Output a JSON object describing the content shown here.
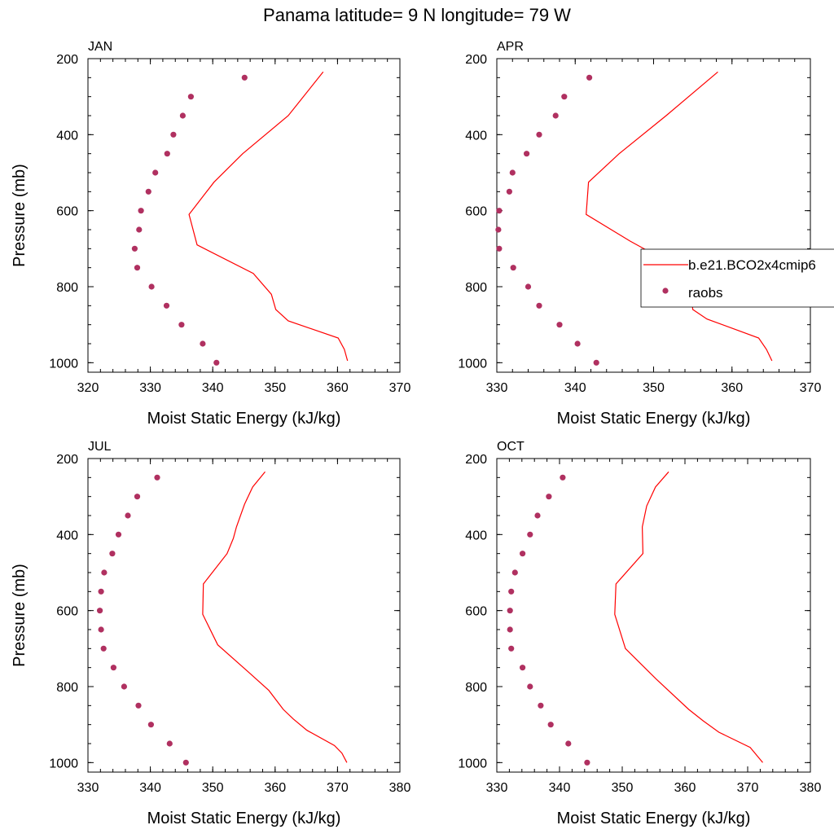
{
  "figure": {
    "title": "Panama  latitude= 9 N longitude= 79 W"
  },
  "colors": {
    "model": "#ff0000",
    "obs": "#b03060",
    "axes": "#000000"
  },
  "legend": {
    "panel": "APR",
    "placement": "right, overlapping APR panel",
    "entries": [
      {
        "label": "b.e21.BCO2x4cmip6",
        "style": "line",
        "color": "#ff0000"
      },
      {
        "label": "raobs",
        "style": "marker",
        "color": "#b03060"
      }
    ]
  },
  "chart_data": [
    {
      "type": "line",
      "panel": "JAN",
      "title": "JAN",
      "xlabel": "Moist Static Energy (kJ/kg)",
      "ylabel": "Pressure (mb)",
      "xlim": [
        320,
        370
      ],
      "ylim": [
        200,
        1025
      ],
      "y_inverted": true,
      "xticks": [
        320,
        330,
        340,
        350,
        360,
        370
      ],
      "yticks": [
        200,
        400,
        600,
        800,
        1000
      ],
      "series": [
        {
          "name": "b.e21.BCO2x4cmip6",
          "style": "line",
          "x": [
            357.7,
            352.1,
            344.8,
            340.2,
            336.2,
            337.5,
            346.5,
            349.4,
            350.1,
            352.1,
            360.1,
            361.1,
            361.6
          ],
          "y": [
            235,
            350,
            450,
            525,
            610,
            690,
            765,
            820,
            860,
            890,
            935,
            965,
            995
          ]
        },
        {
          "name": "raobs",
          "style": "marker",
          "x": [
            345.1,
            336.5,
            335.2,
            333.7,
            332.7,
            330.8,
            329.7,
            328.5,
            328.2,
            327.5,
            327.9,
            330.2,
            332.6,
            335.0,
            338.4,
            340.6
          ],
          "y": [
            250,
            300,
            350,
            400,
            450,
            500,
            550,
            600,
            650,
            700,
            750,
            800,
            850,
            900,
            950,
            1000
          ]
        }
      ]
    },
    {
      "type": "line",
      "panel": "APR",
      "title": "APR",
      "xlabel": "Moist Static Energy (kJ/kg)",
      "ylabel": "",
      "xlim": [
        330,
        370
      ],
      "ylim": [
        200,
        1025
      ],
      "y_inverted": true,
      "xticks": [
        330,
        340,
        350,
        360,
        370
      ],
      "yticks": [
        200,
        400,
        600,
        800,
        1000
      ],
      "series": [
        {
          "name": "b.e21.BCO2x4cmip6",
          "style": "line",
          "x": [
            358.2,
            351.6,
            345.6,
            341.7,
            341.4,
            347.0,
            354.5,
            355.0,
            356.8,
            363.4,
            364.4,
            365.1
          ],
          "y": [
            235,
            350,
            450,
            525,
            610,
            680,
            765,
            860,
            885,
            935,
            965,
            995
          ]
        },
        {
          "name": "raobs",
          "style": "marker",
          "x": [
            341.8,
            338.6,
            337.5,
            335.4,
            333.8,
            332.0,
            331.6,
            330.3,
            330.2,
            330.3,
            332.1,
            334.0,
            335.4,
            338.0,
            340.3,
            342.7
          ],
          "y": [
            250,
            300,
            350,
            400,
            450,
            500,
            550,
            600,
            650,
            700,
            750,
            800,
            850,
            900,
            950,
            1000
          ]
        }
      ]
    },
    {
      "type": "line",
      "panel": "JUL",
      "title": "JUL",
      "xlabel": "Moist Static Energy (kJ/kg)",
      "ylabel": "Pressure (mb)",
      "xlim": [
        330,
        380
      ],
      "ylim": [
        200,
        1025
      ],
      "y_inverted": true,
      "xticks": [
        330,
        340,
        350,
        360,
        370,
        380
      ],
      "yticks": [
        200,
        400,
        600,
        800,
        1000
      ],
      "series": [
        {
          "name": "b.e21.BCO2x4cmip6",
          "style": "line",
          "x": [
            358.4,
            356.4,
            355.1,
            353.8,
            353.3,
            352.3,
            348.5,
            348.4,
            350.8,
            355.6,
            359.0,
            361.3,
            362.9,
            365.1,
            369.5,
            370.7,
            371.5
          ],
          "y": [
            235,
            275,
            320,
            380,
            410,
            450,
            530,
            610,
            690,
            760,
            810,
            860,
            885,
            915,
            955,
            975,
            1000
          ]
        },
        {
          "name": "raobs",
          "style": "marker",
          "x": [
            341.1,
            337.9,
            336.4,
            334.9,
            333.9,
            332.6,
            332.1,
            331.9,
            332.1,
            332.5,
            334.1,
            335.8,
            338.1,
            340.1,
            343.1,
            345.7
          ],
          "y": [
            250,
            300,
            350,
            400,
            450,
            500,
            550,
            600,
            650,
            700,
            750,
            800,
            850,
            900,
            950,
            1000
          ]
        }
      ]
    },
    {
      "type": "line",
      "panel": "OCT",
      "title": "OCT",
      "xlabel": "Moist Static Energy (kJ/kg)",
      "ylabel": "",
      "xlim": [
        330,
        380
      ],
      "ylim": [
        200,
        1025
      ],
      "y_inverted": true,
      "xticks": [
        330,
        340,
        350,
        360,
        370,
        380
      ],
      "yticks": [
        200,
        400,
        600,
        800,
        1000
      ],
      "series": [
        {
          "name": "b.e21.BCO2x4cmip6",
          "style": "line",
          "x": [
            357.4,
            355.3,
            353.9,
            353.2,
            353.3,
            349.0,
            348.8,
            350.5,
            355.4,
            360.6,
            362.9,
            365.4,
            370.4,
            372.4
          ],
          "y": [
            235,
            275,
            325,
            380,
            450,
            530,
            610,
            700,
            780,
            860,
            890,
            920,
            960,
            1000
          ]
        },
        {
          "name": "raobs",
          "style": "marker",
          "x": [
            340.5,
            338.3,
            336.5,
            335.3,
            334.1,
            332.9,
            332.3,
            332.1,
            332.1,
            332.3,
            334.1,
            335.3,
            337.0,
            338.6,
            341.4,
            344.4
          ],
          "y": [
            250,
            300,
            350,
            400,
            450,
            500,
            550,
            600,
            650,
            700,
            750,
            800,
            850,
            900,
            950,
            1000
          ]
        }
      ]
    }
  ]
}
